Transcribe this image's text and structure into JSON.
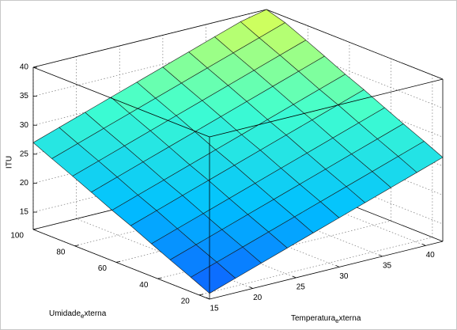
{
  "chart_data": {
    "type": "surface",
    "xlabel": [
      "Temperatura",
      "e",
      "xterna"
    ],
    "ylabel": [
      "Umidade",
      "e",
      "xterna"
    ],
    "zlabel": "ITU",
    "x": [
      15,
      18,
      21,
      24,
      27,
      30,
      33,
      36,
      39,
      42
    ],
    "y": [
      15,
      24,
      34,
      43,
      53,
      62,
      72,
      81,
      91,
      100
    ],
    "z": [
      [
        13,
        14.5,
        16,
        17.5,
        19,
        20.5,
        22,
        23.5,
        25,
        26.5
      ],
      [
        14.5,
        16,
        17.5,
        19,
        20.5,
        22,
        23.5,
        25,
        26.5,
        28
      ],
      [
        16.1,
        17.6,
        19.1,
        20.6,
        22.1,
        23.6,
        25.1,
        26.6,
        28.1,
        29.6
      ],
      [
        17.6,
        19.1,
        20.6,
        22.1,
        23.6,
        25.1,
        26.6,
        28.1,
        29.6,
        31.1
      ],
      [
        19.3,
        20.8,
        22.3,
        23.8,
        25.3,
        26.8,
        28.3,
        29.8,
        31.3,
        32.8
      ],
      [
        20.7,
        22.2,
        23.7,
        25.2,
        26.7,
        28.2,
        29.7,
        31.2,
        32.7,
        34.2
      ],
      [
        22.4,
        23.9,
        25.4,
        26.9,
        28.4,
        29.9,
        31.4,
        32.9,
        34.4,
        35.9
      ],
      [
        23.9,
        25.4,
        26.9,
        28.4,
        29.9,
        31.4,
        32.9,
        34.4,
        35.9,
        37.4
      ],
      [
        25.5,
        27,
        28.5,
        30,
        31.5,
        33,
        34.5,
        36,
        37.5,
        39
      ],
      [
        27,
        28.5,
        30,
        31.5,
        33,
        34.5,
        36,
        37.5,
        39,
        40
      ]
    ],
    "xlim": [
      15,
      42
    ],
    "ylim": [
      15,
      100
    ],
    "zlim": [
      12,
      40
    ],
    "xticks": [
      15,
      20,
      25,
      30,
      35,
      40
    ],
    "yticks": [
      20,
      40,
      60,
      80,
      100
    ],
    "zticks": [
      15,
      20,
      25,
      30,
      35,
      40
    ],
    "grid": true,
    "colormap": [
      "#1050ff",
      "#00c0ff",
      "#40ffd0",
      "#e0ff50"
    ]
  }
}
